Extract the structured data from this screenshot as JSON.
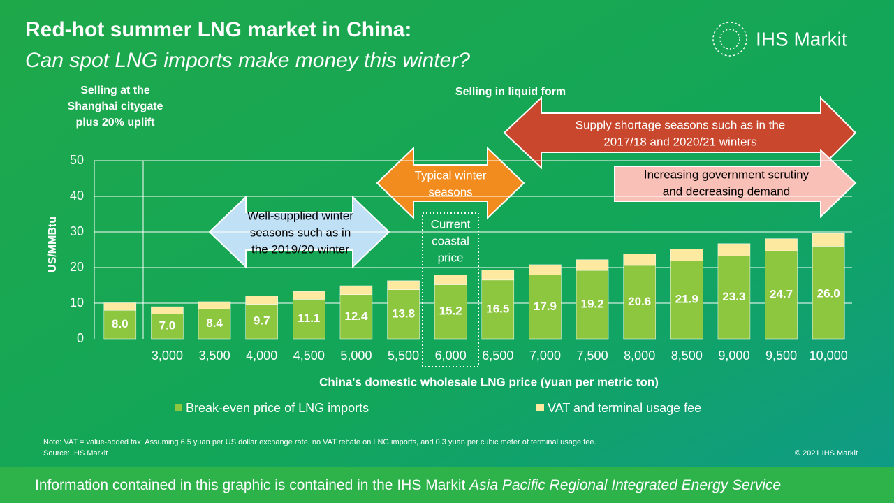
{
  "chart_data": {
    "type": "stacked-bar",
    "title": "Red-hot summer LNG market in China:",
    "subtitle": "Can spot LNG imports make money this winter?",
    "logo": "IHS Markit",
    "left_note": [
      "Selling at the",
      "Shanghai citygate",
      "plus 20% uplift"
    ],
    "liquid_note": "Selling in liquid form",
    "annotations": {
      "shortage": [
        "Supply shortage seasons such as in the",
        "2017/18 and 2020/21 winters"
      ],
      "scrutiny": [
        "Increasing government scrutiny",
        "and decreasing demand"
      ],
      "typical": [
        "Typical winter",
        "seasons"
      ],
      "well_supplied": [
        "Well-supplied winter",
        "seasons such as in",
        "the 2019/20 winter"
      ],
      "current": [
        "Current",
        "coastal",
        "price"
      ]
    },
    "ylabel": "US/MMBtu",
    "xlabel": "China's domestic wholesale LNG price (yuan per metric ton)",
    "categories": [
      null,
      "3,000",
      "3,500",
      "4,000",
      "4,500",
      "5,000",
      "5,500",
      "6,000",
      "6,500",
      "7,000",
      "7,500",
      "8,000",
      "8,500",
      "9,000",
      "9,500",
      "10,000"
    ],
    "series": [
      {
        "name": "Break-even price of LNG imports",
        "color": "#8dc63f",
        "values": [
          8.0,
          7.0,
          8.4,
          9.7,
          11.1,
          12.4,
          13.8,
          15.2,
          16.5,
          17.9,
          19.2,
          20.6,
          21.9,
          23.3,
          24.7,
          26.0
        ],
        "value_labels": [
          "8.0",
          "7.0",
          "8.4",
          "9.7",
          "11.1",
          "12.4",
          "13.8",
          "15.2",
          "16.5",
          "17.9",
          "19.2",
          "20.6",
          "21.9",
          "23.3",
          "24.7",
          "26.0"
        ]
      },
      {
        "name": "VAT and terminal usage fee",
        "color": "#fde9a0",
        "values": [
          2.1,
          2.0,
          2.0,
          2.3,
          2.2,
          2.5,
          2.5,
          2.7,
          2.8,
          2.9,
          3.0,
          3.2,
          3.3,
          3.4,
          3.4,
          3.6
        ]
      }
    ],
    "ylim": [
      0,
      50
    ],
    "yticks": [
      0,
      10,
      20,
      30,
      40,
      50
    ],
    "grid": true,
    "note": "Note: VAT = value-added  tax. Assuming 6.5 yuan per US dollar exchange rate, no VAT rebate on LNG imports, and 0.3 yuan per cubic meter of terminal usage fee.",
    "source": "Source: IHS Markit",
    "copyright": "© 2021 IHS Markit",
    "footer": "Information contained in this graphic is contained in the IHS Markit ",
    "footer_italic": "Asia Pacific Regional Integrated Energy Service"
  }
}
